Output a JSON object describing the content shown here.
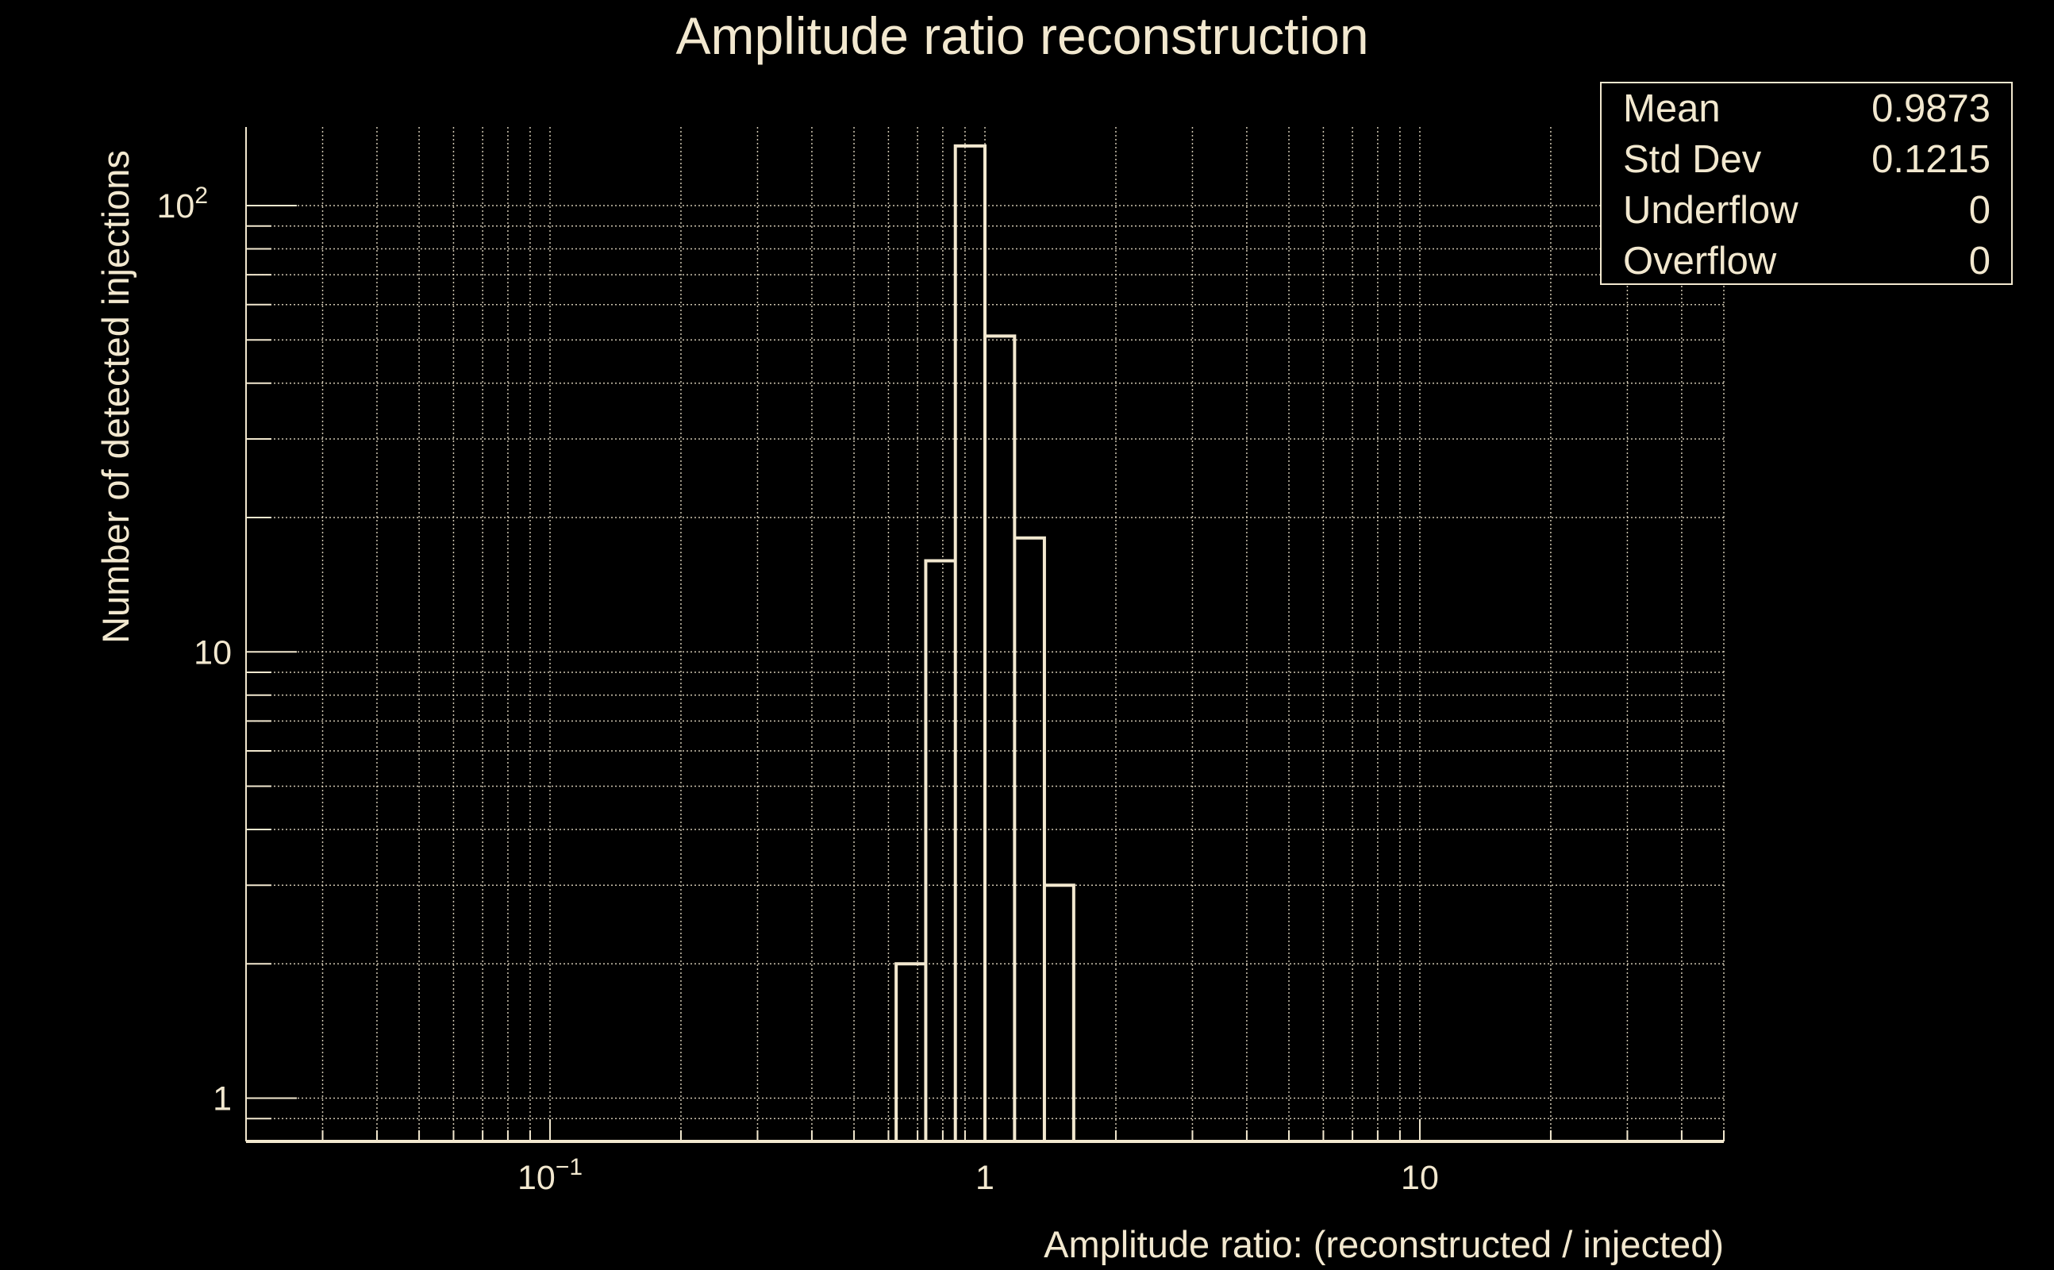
{
  "chart_data": {
    "type": "bar",
    "title": "Amplitude ratio reconstruction",
    "xlabel": "Amplitude ratio: (reconstructed / injected)",
    "ylabel": "Number of detected injections",
    "xscale": "log",
    "yscale": "log",
    "xlim": [
      0.02,
      50
    ],
    "ylim": [
      0.8,
      150
    ],
    "grid": true,
    "n_bins": 50,
    "x_ticks": [
      {
        "value": 0.1,
        "label": "10",
        "sup": "−1"
      },
      {
        "value": 1,
        "label": "1",
        "sup": ""
      },
      {
        "value": 10,
        "label": "10",
        "sup": ""
      }
    ],
    "y_ticks": [
      {
        "value": 1,
        "label": "1",
        "sup": ""
      },
      {
        "value": 10,
        "label": "10",
        "sup": ""
      },
      {
        "value": 100,
        "label": "10",
        "sup": "2"
      }
    ],
    "bins": [
      {
        "low": 0.625,
        "high": 0.731,
        "count": 2
      },
      {
        "low": 0.731,
        "high": 0.855,
        "count": 16
      },
      {
        "low": 0.855,
        "high": 1.0,
        "count": 136
      },
      {
        "low": 1.0,
        "high": 1.17,
        "count": 51
      },
      {
        "low": 1.17,
        "high": 1.37,
        "count": 18
      },
      {
        "low": 1.37,
        "high": 1.6,
        "count": 3
      }
    ],
    "stats": [
      {
        "label": "Mean",
        "value": "0.9873"
      },
      {
        "label": "Std Dev",
        "value": "0.1215"
      },
      {
        "label": "Underflow",
        "value": "0"
      },
      {
        "label": "Overflow",
        "value": "0"
      }
    ],
    "legend_placement": "top-right"
  },
  "colors": {
    "foreground": "#f2e8cf",
    "background": "#000000"
  }
}
